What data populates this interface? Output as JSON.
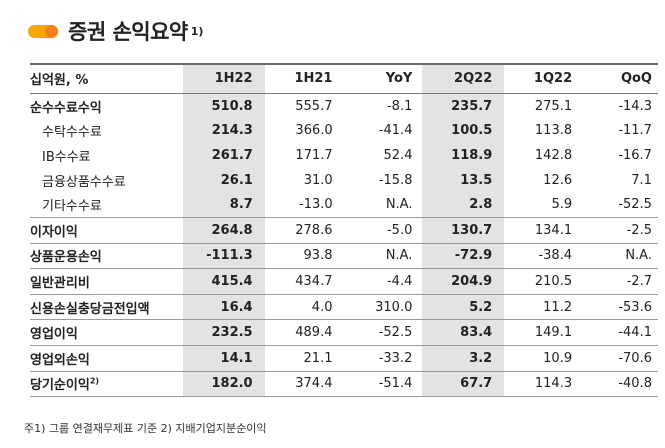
{
  "title": {
    "text": "증권 손익요약",
    "sup": "1)"
  },
  "table": {
    "header": [
      "십억원, %",
      "1H22",
      "1H21",
      "YoY",
      "2Q22",
      "1Q22",
      "QoQ"
    ],
    "rows": [
      {
        "label": "순수수료수익",
        "sup": "",
        "indent": false,
        "sep": false,
        "cells": [
          "510.8",
          "555.7",
          "-8.1",
          "235.7",
          "275.1",
          "-14.3"
        ]
      },
      {
        "label": "수탁수수료",
        "sup": "",
        "indent": true,
        "sep": false,
        "cells": [
          "214.3",
          "366.0",
          "-41.4",
          "100.5",
          "113.8",
          "-11.7"
        ]
      },
      {
        "label": "IB수수료",
        "sup": "",
        "indent": true,
        "sep": false,
        "cells": [
          "261.7",
          "171.7",
          "52.4",
          "118.9",
          "142.8",
          "-16.7"
        ]
      },
      {
        "label": "금융상품수수료",
        "sup": "",
        "indent": true,
        "sep": false,
        "cells": [
          "26.1",
          "31.0",
          "-15.8",
          "13.5",
          "12.6",
          "7.1"
        ]
      },
      {
        "label": "기타수수료",
        "sup": "",
        "indent": true,
        "sep": true,
        "cells": [
          "8.7",
          "-13.0",
          "N.A.",
          "2.8",
          "5.9",
          "-52.5"
        ]
      },
      {
        "label": "이자이익",
        "sup": "",
        "indent": false,
        "sep": true,
        "cells": [
          "264.8",
          "278.6",
          "-5.0",
          "130.7",
          "134.1",
          "-2.5"
        ]
      },
      {
        "label": "상품운용손익",
        "sup": "",
        "indent": false,
        "sep": true,
        "cells": [
          "-111.3",
          "93.8",
          "N.A.",
          "-72.9",
          "-38.4",
          "N.A."
        ]
      },
      {
        "label": "일반관리비",
        "sup": "",
        "indent": false,
        "sep": true,
        "cells": [
          "415.4",
          "434.7",
          "-4.4",
          "204.9",
          "210.5",
          "-2.7"
        ]
      },
      {
        "label": "신용손실충당금전입액",
        "sup": "",
        "indent": false,
        "sep": true,
        "cells": [
          "16.4",
          "4.0",
          "310.0",
          "5.2",
          "11.2",
          "-53.6"
        ]
      },
      {
        "label": "영업이익",
        "sup": "",
        "indent": false,
        "sep": true,
        "cells": [
          "232.5",
          "489.4",
          "-52.5",
          "83.4",
          "149.1",
          "-44.1"
        ]
      },
      {
        "label": "영업외손익",
        "sup": "",
        "indent": false,
        "sep": true,
        "cells": [
          "14.1",
          "21.1",
          "-33.2",
          "3.2",
          "10.9",
          "-70.6"
        ]
      },
      {
        "label": "당기순이익",
        "sup": "2)",
        "indent": false,
        "sep": true,
        "cells": [
          "182.0",
          "374.4",
          "-51.4",
          "67.7",
          "114.3",
          "-40.8"
        ]
      }
    ]
  },
  "footnote": "주1) 그룹 연결재무제표 기준   2) 지배기업지분순이익"
}
